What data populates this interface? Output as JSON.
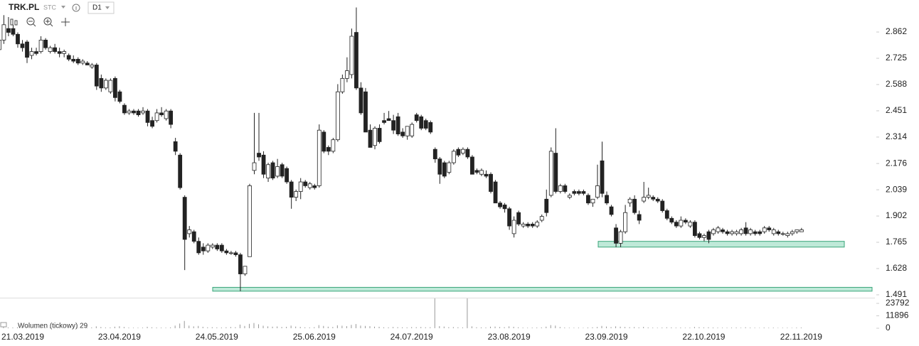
{
  "chart_data": {
    "type": "candlestick",
    "title": "TRK.PL",
    "subtitle": "STC",
    "timeframe": "D1",
    "categories": [
      null,
      null,
      null,
      null,
      null,
      "21.03.2019",
      null,
      null,
      null,
      null,
      null,
      null,
      null,
      null,
      null,
      null,
      null,
      null,
      null,
      null,
      null,
      null,
      null,
      null,
      null,
      null,
      "23.04.2019",
      null,
      null,
      null,
      null,
      null,
      null,
      null,
      null,
      null,
      null,
      null,
      null,
      null,
      null,
      null,
      null,
      null,
      null,
      null,
      null,
      "24.05.2019",
      null,
      null,
      null,
      null,
      null,
      null,
      null,
      null,
      null,
      null,
      null,
      null,
      null,
      null,
      null,
      null,
      null,
      null,
      null,
      null,
      "25.06.2019",
      null,
      null,
      null,
      null,
      null,
      null,
      null,
      null,
      null,
      null,
      null,
      null,
      null,
      null,
      null,
      null,
      null,
      null,
      null,
      null,
      "24.07.2019",
      null,
      null,
      null,
      null,
      null,
      null,
      null,
      null,
      null,
      null,
      null,
      null,
      null,
      null,
      null,
      null,
      null,
      null,
      null,
      null,
      "23.08.2019",
      null,
      null,
      null,
      null,
      null,
      null,
      null,
      null,
      null,
      null,
      null,
      null,
      null,
      null,
      null,
      null,
      null,
      null,
      null,
      null,
      "23.09.2019",
      null,
      null,
      null,
      null,
      null,
      null,
      null,
      null,
      null,
      null,
      null,
      null,
      null,
      null,
      null,
      null,
      null,
      null,
      null,
      null,
      "22.10.2019",
      null,
      null,
      null,
      null,
      null,
      null,
      null,
      null,
      null,
      null,
      null,
      null,
      null,
      null,
      null,
      null,
      null,
      null,
      null,
      null,
      "22.11.2019"
    ],
    "values": [
      [
        2.77,
        2.86,
        2.76,
        2.82
      ],
      [
        2.82,
        2.95,
        2.8,
        2.9
      ],
      [
        2.88,
        2.94,
        2.84,
        2.86
      ],
      [
        2.88,
        2.9,
        2.84,
        2.85
      ],
      [
        2.85,
        2.86,
        2.78,
        2.8
      ],
      [
        2.8,
        2.82,
        2.76,
        2.78
      ],
      [
        2.81,
        2.82,
        2.7,
        2.73
      ],
      [
        2.74,
        2.78,
        2.72,
        2.76
      ],
      [
        2.76,
        2.78,
        2.74,
        2.75
      ],
      [
        2.76,
        2.84,
        2.75,
        2.82
      ],
      [
        2.82,
        2.83,
        2.77,
        2.78
      ],
      [
        2.76,
        2.79,
        2.75,
        2.78
      ],
      [
        2.78,
        2.8,
        2.75,
        2.76
      ],
      [
        2.76,
        2.78,
        2.73,
        2.75
      ],
      [
        2.75,
        2.77,
        2.73,
        2.76
      ],
      [
        2.74,
        2.75,
        2.71,
        2.72
      ],
      [
        2.72,
        2.74,
        2.7,
        2.71
      ],
      [
        2.72,
        2.73,
        2.69,
        2.7
      ],
      [
        2.7,
        2.72,
        2.69,
        2.71
      ],
      [
        2.7,
        2.71,
        2.69,
        2.69
      ],
      [
        2.68,
        2.7,
        2.67,
        2.69
      ],
      [
        2.69,
        2.7,
        2.56,
        2.58
      ],
      [
        2.62,
        2.64,
        2.55,
        2.57
      ],
      [
        2.57,
        2.62,
        2.56,
        2.61
      ],
      [
        2.55,
        2.62,
        2.54,
        2.61
      ],
      [
        2.62,
        2.63,
        2.5,
        2.52
      ],
      [
        2.55,
        2.56,
        2.49,
        2.5
      ],
      [
        2.48,
        2.49,
        2.43,
        2.44
      ],
      [
        2.44,
        2.46,
        2.43,
        2.45
      ],
      [
        2.45,
        2.46,
        2.43,
        2.44
      ],
      [
        2.45,
        2.46,
        2.42,
        2.43
      ],
      [
        2.44,
        2.47,
        2.43,
        2.45
      ],
      [
        2.45,
        2.46,
        2.37,
        2.39
      ],
      [
        2.4,
        2.42,
        2.36,
        2.37
      ],
      [
        2.4,
        2.46,
        2.39,
        2.44
      ],
      [
        2.44,
        2.47,
        2.42,
        2.43
      ],
      [
        2.41,
        2.46,
        2.4,
        2.45
      ],
      [
        2.45,
        2.46,
        2.36,
        2.38
      ],
      [
        2.29,
        2.31,
        2.22,
        2.24
      ],
      [
        2.22,
        2.23,
        2.04,
        2.05
      ],
      [
        2.0,
        2.01,
        1.62,
        1.78
      ],
      [
        1.81,
        1.85,
        1.79,
        1.83
      ],
      [
        1.82,
        1.83,
        1.76,
        1.77
      ],
      [
        1.77,
        1.79,
        1.7,
        1.71
      ],
      [
        1.74,
        1.76,
        1.7,
        1.72
      ],
      [
        1.72,
        1.76,
        1.71,
        1.75
      ],
      [
        1.74,
        1.76,
        1.73,
        1.75
      ],
      [
        1.75,
        1.76,
        1.72,
        1.73
      ],
      [
        1.75,
        1.76,
        1.71,
        1.72
      ],
      [
        1.72,
        1.73,
        1.7,
        1.71
      ],
      [
        1.71,
        1.72,
        1.7,
        1.71
      ],
      [
        1.71,
        1.72,
        1.69,
        1.7
      ],
      [
        1.7,
        1.71,
        1.51,
        1.6
      ],
      [
        1.6,
        1.64,
        1.59,
        1.64
      ],
      [
        1.69,
        2.07,
        1.69,
        2.06
      ],
      [
        2.14,
        2.44,
        2.12,
        2.18
      ],
      [
        2.23,
        2.44,
        2.19,
        2.21
      ],
      [
        2.22,
        2.24,
        2.1,
        2.12
      ],
      [
        2.1,
        2.18,
        2.08,
        2.17
      ],
      [
        2.18,
        2.19,
        2.09,
        2.1
      ],
      [
        2.11,
        2.2,
        2.1,
        2.16
      ],
      [
        2.17,
        2.18,
        2.1,
        2.11
      ],
      [
        2.15,
        2.16,
        2.07,
        2.08
      ],
      [
        2.08,
        2.09,
        1.94,
        2.0
      ],
      [
        2.0,
        2.04,
        1.98,
        2.03
      ],
      [
        2.03,
        2.1,
        1.99,
        2.08
      ],
      [
        2.08,
        2.09,
        2.05,
        2.06
      ],
      [
        2.05,
        2.08,
        2.04,
        2.07
      ],
      [
        2.06,
        2.07,
        2.04,
        2.05
      ],
      [
        2.06,
        2.38,
        2.05,
        2.35
      ],
      [
        2.34,
        2.35,
        2.23,
        2.24
      ],
      [
        2.26,
        2.27,
        2.22,
        2.24
      ],
      [
        2.24,
        2.31,
        2.23,
        2.3
      ],
      [
        2.3,
        2.59,
        2.29,
        2.55
      ],
      [
        2.55,
        2.64,
        2.54,
        2.62
      ],
      [
        2.62,
        2.73,
        2.6,
        2.66
      ],
      [
        2.64,
        2.88,
        2.62,
        2.84
      ],
      [
        2.86,
        2.99,
        2.56,
        2.57
      ],
      [
        2.57,
        2.6,
        2.43,
        2.44
      ],
      [
        2.55,
        2.57,
        2.34,
        2.34
      ],
      [
        2.35,
        2.38,
        2.26,
        2.26
      ],
      [
        2.27,
        2.37,
        2.25,
        2.36
      ],
      [
        2.36,
        2.38,
        2.28,
        2.29
      ],
      [
        2.4,
        2.44,
        2.38,
        2.39
      ],
      [
        2.41,
        2.45,
        2.4,
        2.4
      ],
      [
        2.4,
        2.43,
        2.33,
        2.35
      ],
      [
        2.42,
        2.44,
        2.32,
        2.33
      ],
      [
        2.34,
        2.36,
        2.31,
        2.32
      ],
      [
        2.32,
        2.37,
        2.3,
        2.37
      ],
      [
        2.32,
        2.39,
        2.31,
        2.38
      ],
      [
        2.43,
        2.44,
        2.39,
        2.4
      ],
      [
        2.42,
        2.43,
        2.35,
        2.36
      ],
      [
        2.4,
        2.41,
        2.35,
        2.36
      ],
      [
        2.39,
        2.4,
        2.33,
        2.34
      ],
      [
        2.25,
        2.26,
        2.18,
        2.2
      ],
      [
        2.2,
        2.21,
        2.07,
        2.12
      ],
      [
        2.18,
        2.19,
        2.1,
        2.11
      ],
      [
        2.13,
        2.19,
        2.12,
        2.18
      ],
      [
        2.18,
        2.25,
        2.17,
        2.24
      ],
      [
        2.25,
        2.26,
        2.21,
        2.22
      ],
      [
        2.23,
        2.26,
        2.22,
        2.25
      ],
      [
        2.25,
        2.26,
        2.2,
        2.21
      ],
      [
        2.21,
        2.22,
        2.12,
        2.12
      ],
      [
        2.14,
        2.15,
        2.12,
        2.13
      ],
      [
        2.12,
        2.15,
        2.11,
        2.14
      ],
      [
        2.12,
        2.14,
        2.1,
        2.11
      ],
      [
        2.12,
        2.13,
        2.02,
        2.03
      ],
      [
        2.08,
        2.09,
        1.97,
        1.97
      ],
      [
        1.97,
        1.98,
        1.94,
        1.95
      ],
      [
        1.96,
        1.97,
        1.92,
        1.94
      ],
      [
        1.94,
        1.95,
        1.83,
        1.85
      ],
      [
        1.81,
        1.9,
        1.79,
        1.88
      ],
      [
        1.92,
        1.93,
        1.85,
        1.86
      ],
      [
        1.85,
        1.87,
        1.84,
        1.86
      ],
      [
        1.86,
        1.87,
        1.84,
        1.85
      ],
      [
        1.86,
        1.87,
        1.84,
        1.85
      ],
      [
        1.85,
        1.88,
        1.84,
        1.87
      ],
      [
        1.88,
        1.91,
        1.87,
        1.9
      ],
      [
        1.99,
        2.04,
        1.9,
        1.92
      ],
      [
        2.01,
        2.26,
        2.0,
        2.24
      ],
      [
        2.23,
        2.36,
        2.02,
        2.03
      ],
      [
        2.03,
        2.07,
        2.02,
        2.06
      ],
      [
        2.06,
        2.07,
        2.02,
        2.03
      ],
      [
        2.0,
        2.02,
        1.99,
        2.01
      ],
      [
        2.03,
        2.04,
        2.01,
        2.02
      ],
      [
        2.03,
        2.04,
        2.01,
        2.02
      ],
      [
        2.03,
        2.04,
        2.01,
        2.02
      ],
      [
        2.01,
        2.02,
        1.96,
        1.97
      ],
      [
        1.97,
        1.99,
        1.95,
        1.99
      ],
      [
        2.0,
        2.17,
        1.99,
        2.06
      ],
      [
        2.19,
        2.29,
        2.0,
        2.02
      ],
      [
        2.01,
        2.03,
        1.96,
        1.97
      ],
      [
        1.95,
        1.96,
        1.9,
        1.91
      ],
      [
        1.84,
        1.86,
        1.74,
        1.76
      ],
      [
        1.76,
        1.83,
        1.74,
        1.82
      ],
      [
        1.82,
        1.96,
        1.81,
        1.92
      ],
      [
        1.97,
        2.0,
        1.95,
        1.99
      ],
      [
        1.99,
        2.01,
        1.91,
        1.92
      ],
      [
        1.91,
        1.93,
        1.86,
        1.88
      ],
      [
        1.98,
        2.08,
        1.97,
        2.0
      ],
      [
        2.0,
        2.05,
        1.99,
        2.01
      ],
      [
        2.0,
        2.01,
        1.98,
        1.99
      ],
      [
        1.99,
        2.0,
        1.97,
        1.98
      ],
      [
        1.98,
        1.99,
        1.92,
        1.93
      ],
      [
        1.93,
        1.94,
        1.88,
        1.89
      ],
      [
        1.89,
        1.9,
        1.86,
        1.87
      ],
      [
        1.87,
        1.88,
        1.84,
        1.85
      ],
      [
        1.85,
        1.9,
        1.84,
        1.88
      ],
      [
        1.88,
        1.89,
        1.86,
        1.87
      ],
      [
        1.85,
        1.88,
        1.84,
        1.87
      ],
      [
        1.87,
        1.88,
        1.79,
        1.8
      ],
      [
        1.81,
        1.82,
        1.78,
        1.79
      ],
      [
        1.79,
        1.81,
        1.77,
        1.8
      ],
      [
        1.82,
        1.83,
        1.76,
        1.78
      ],
      [
        1.81,
        1.84,
        1.8,
        1.83
      ],
      [
        1.82,
        1.85,
        1.81,
        1.84
      ],
      [
        1.83,
        1.84,
        1.81,
        1.82
      ],
      [
        1.82,
        1.83,
        1.8,
        1.81
      ],
      [
        1.81,
        1.83,
        1.8,
        1.82
      ],
      [
        1.81,
        1.83,
        1.8,
        1.82
      ],
      [
        1.81,
        1.84,
        1.8,
        1.83
      ],
      [
        1.84,
        1.87,
        1.8,
        1.81
      ],
      [
        1.81,
        1.84,
        1.8,
        1.83
      ],
      [
        1.82,
        1.83,
        1.8,
        1.81
      ],
      [
        1.82,
        1.83,
        1.8,
        1.81
      ],
      [
        1.82,
        1.85,
        1.81,
        1.84
      ],
      [
        1.84,
        1.85,
        1.82,
        1.83
      ],
      [
        1.81,
        1.84,
        1.8,
        1.83
      ],
      [
        1.82,
        1.83,
        1.8,
        1.81
      ],
      [
        1.81,
        1.82,
        1.8,
        1.81
      ],
      [
        1.8,
        1.82,
        1.79,
        1.81
      ],
      [
        1.81,
        1.83,
        1.8,
        1.82
      ],
      [
        1.82,
        1.83,
        1.81,
        1.83
      ],
      [
        1.82,
        1.84,
        1.82,
        1.83
      ]
    ],
    "up_color": "#ffffff",
    "down_color": "#222222",
    "ylim": [
      1.476,
      3.029
    ],
    "yticks": [
      1.491,
      1.628,
      1.765,
      1.902,
      2.039,
      2.176,
      2.314,
      2.451,
      2.588,
      2.725,
      2.862
    ],
    "zones": [
      {
        "from": 1.51,
        "to": 1.53
      },
      {
        "from": 1.74,
        "to": 1.77
      }
    ],
    "zone_color": "#a8e2cb",
    "volume": {
      "label": "Wolumen (tickowy) 29",
      "ylim": [
        0,
        28550
      ],
      "yticks": [
        0,
        11896,
        23792
      ],
      "color": "#999999",
      "values": [
        900,
        1100,
        800,
        700,
        900,
        1200,
        1500,
        800,
        700,
        900,
        600,
        700,
        500,
        600,
        700,
        800,
        600,
        500,
        700,
        600,
        800,
        1800,
        1200,
        700,
        800,
        1500,
        1900,
        1200,
        600,
        500,
        500,
        600,
        1400,
        900,
        700,
        600,
        500,
        800,
        2500,
        4500,
        7000,
        2500,
        1800,
        2200,
        1400,
        900,
        1000,
        800,
        700,
        900,
        1200,
        1000,
        3500,
        2200,
        4200,
        5000,
        3800,
        2400,
        1800,
        1500,
        1700,
        1200,
        1400,
        2500,
        1600,
        1300,
        900,
        800,
        1000,
        3000,
        2200,
        1500,
        1200,
        2800,
        2400,
        2000,
        3200,
        4000,
        2500,
        2200,
        2000,
        1500,
        1400,
        900,
        800,
        1200,
        1000,
        900,
        800,
        1100,
        1000,
        1200,
        900,
        1000,
        28500,
        2000,
        1600,
        1000,
        1100,
        900,
        800,
        28500,
        1800,
        900,
        800,
        700,
        1500,
        1600,
        1200,
        1000,
        1800,
        1400,
        900,
        600,
        500,
        600,
        700,
        800,
        1500,
        3000,
        2500,
        1200,
        700,
        500,
        500,
        600,
        400,
        700,
        900,
        1200,
        2200,
        1600,
        1100,
        1800,
        1500,
        1200,
        1000,
        1100,
        800,
        1300,
        800,
        600,
        500,
        700,
        900,
        800,
        600,
        700,
        500,
        600,
        1200,
        1000,
        800,
        900,
        700,
        600,
        500,
        500,
        600,
        700,
        500,
        900,
        600,
        500,
        400,
        700,
        500,
        600,
        400,
        500,
        500,
        400,
        600,
        700
      ]
    }
  }
}
